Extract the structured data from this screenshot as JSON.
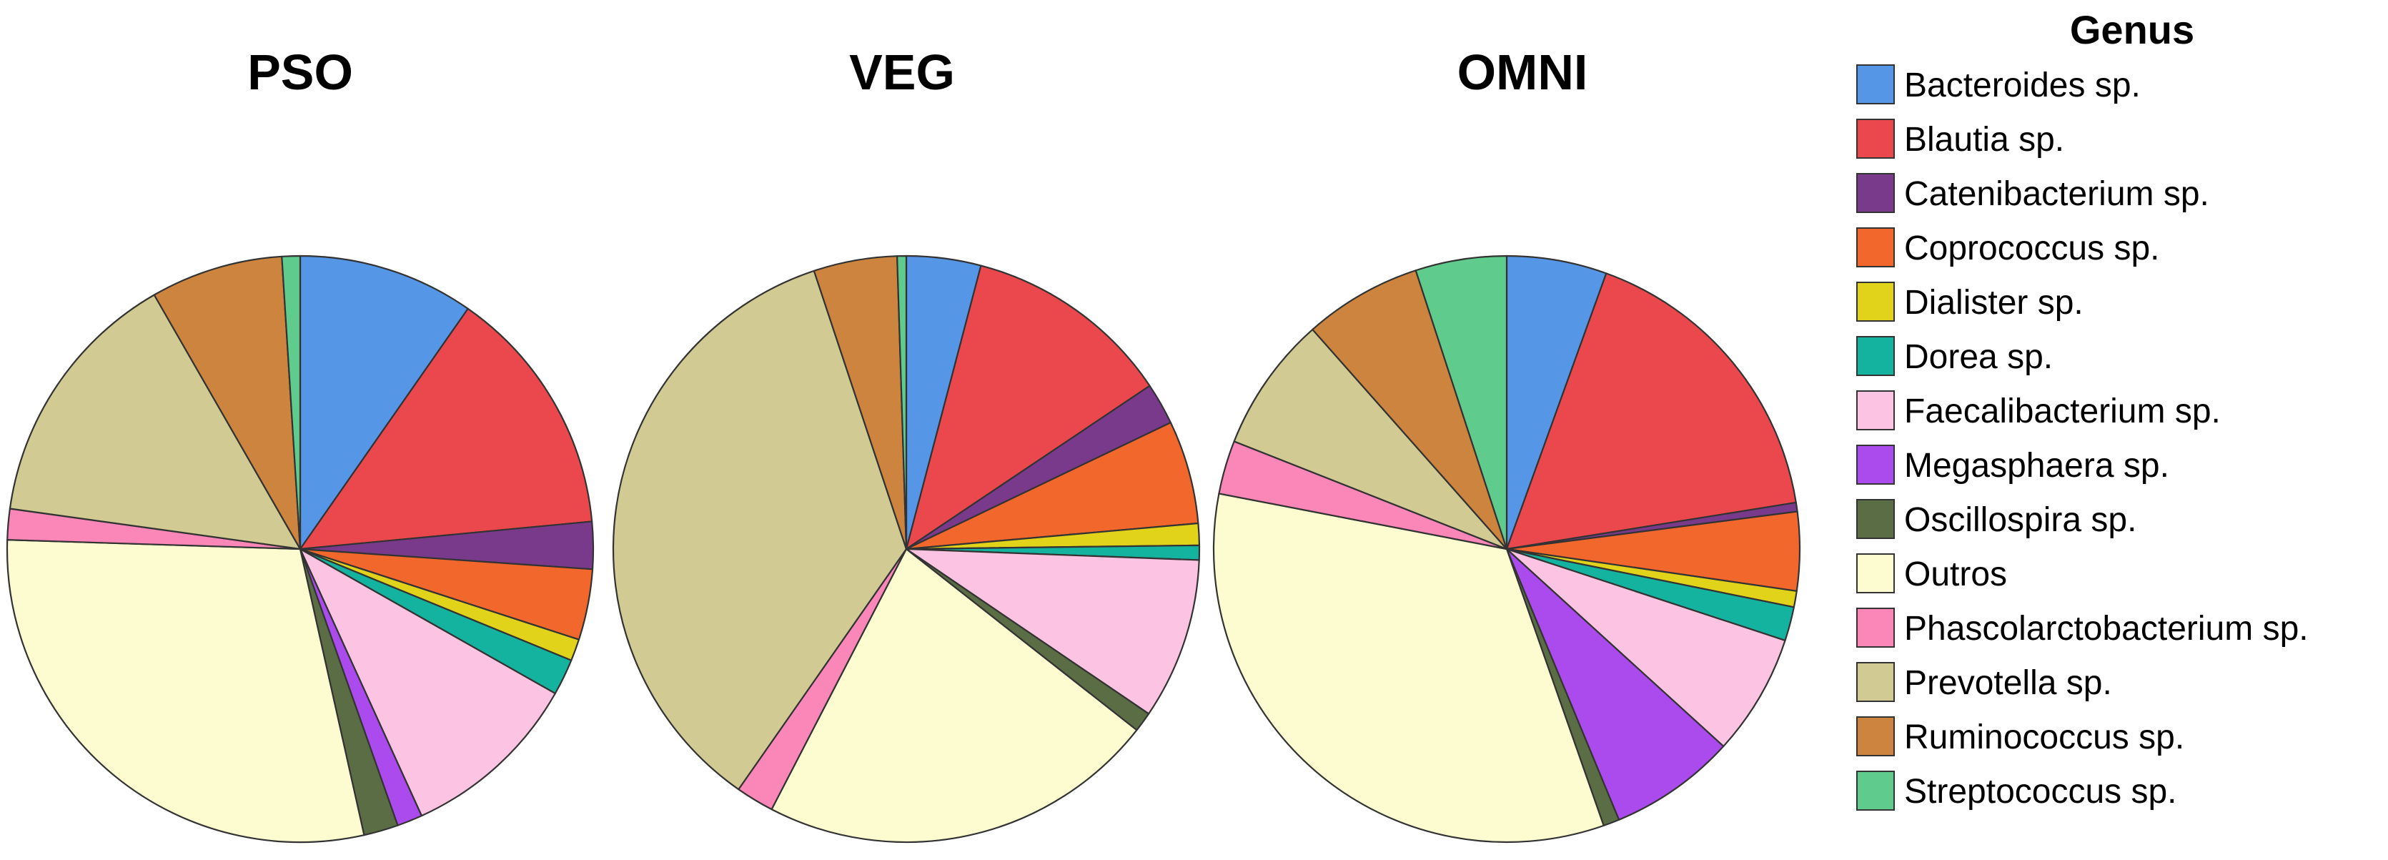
{
  "chart_data": {
    "type": "pie",
    "legend": {
      "title": "Genus",
      "placement": "right"
    },
    "categories": [
      {
        "name": "Bacteroides sp.",
        "color": "#5596E6"
      },
      {
        "name": "Blautia sp.",
        "color": "#EB484D"
      },
      {
        "name": "Catenibacterium sp.",
        "color": "#7A3A8C"
      },
      {
        "name": "Coprococcus sp.",
        "color": "#F2672B"
      },
      {
        "name": "Dialister sp.",
        "color": "#E1D21A"
      },
      {
        "name": "Dorea sp.",
        "color": "#13B3A0"
      },
      {
        "name": "Faecalibacterium sp.",
        "color": "#FCC4E2"
      },
      {
        "name": "Megasphaera sp.",
        "color": "#AB4BEE"
      },
      {
        "name": "Oscillospira sp.",
        "color": "#5B6D45"
      },
      {
        "name": "Outros",
        "color": "#FDFCD0"
      },
      {
        "name": "Phascolarctobacterium sp.",
        "color": "#FA87B8"
      },
      {
        "name": "Prevotella sp.",
        "color": "#D1CA92"
      },
      {
        "name": "Ruminococcus sp.",
        "color": "#CC843E"
      },
      {
        "name": "Streptococcus sp.",
        "color": "#5FCB8C"
      }
    ],
    "pies": [
      {
        "title": "PSO",
        "values": [
          9.7,
          13.8,
          2.6,
          3.9,
          1.2,
          2.0,
          10.0,
          1.4,
          1.9,
          29.0,
          1.7,
          14.5,
          7.3,
          1.0
        ]
      },
      {
        "title": "VEG",
        "values": [
          4.1,
          11.5,
          2.3,
          5.7,
          1.2,
          0.8,
          8.9,
          0.0,
          1.1,
          22.0,
          2.1,
          35.2,
          4.6,
          0.5
        ]
      },
      {
        "title": "OMNI",
        "values": [
          5.6,
          17.2,
          0.5,
          4.4,
          0.9,
          1.9,
          6.8,
          7.1,
          0.9,
          33.9,
          3.0,
          7.6,
          6.6,
          5.1
        ]
      }
    ]
  }
}
